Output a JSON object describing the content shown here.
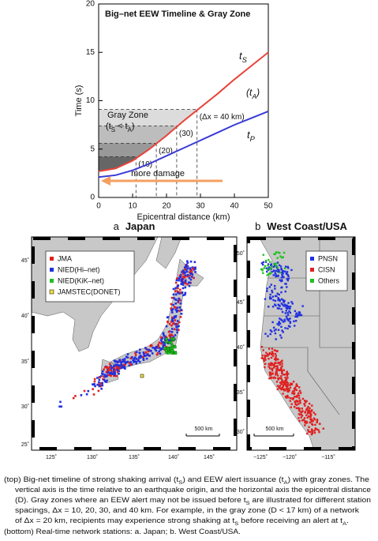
{
  "chart_data": {
    "type": "line",
    "title": "Big–net EEW Timeline & Gray Zone",
    "xlabel": "Epicentral distance (km)",
    "ylabel": "Time (s)",
    "xlim": [
      0,
      50
    ],
    "ylim": [
      0,
      20
    ],
    "xticks": [
      0,
      10,
      20,
      30,
      40,
      50
    ],
    "yticks": [
      0,
      5,
      10,
      15,
      20
    ],
    "x": [
      0,
      5,
      10,
      15,
      20,
      25,
      30,
      35,
      40,
      45,
      50
    ],
    "series": [
      {
        "label": [
          "t",
          {
            "sub": "S"
          }
        ],
        "color": "#e8433a",
        "values": [
          2.7,
          3.0,
          3.8,
          5.0,
          6.4,
          7.9,
          9.3,
          10.7,
          12.2,
          13.6,
          15.0
        ]
      },
      {
        "label": [
          "t",
          {
            "sub": "P"
          }
        ],
        "color": "#3a3ad8",
        "values": [
          2.1,
          2.3,
          2.8,
          3.5,
          4.3,
          5.1,
          5.9,
          6.7,
          7.5,
          8.2,
          8.9
        ]
      }
    ],
    "annotations": {
      "t_a": [
        "(t",
        {
          "sub": "A"
        },
        ")"
      ],
      "gray_zone": "Gray Zone",
      "condition": [
        "(t",
        {
          "sub": "S"
        },
        " < t",
        {
          "sub": "A"
        },
        ")"
      ],
      "arrow": "more damage"
    },
    "zones": [
      {
        "label": "(Δx = 40 km)",
        "x": 29,
        "top": 9.1
      },
      {
        "label": "(30)",
        "x": 23,
        "top": 7.4
      },
      {
        "label": "(20)",
        "x": 17,
        "top": 5.6
      },
      {
        "label": "(10)",
        "x": 11,
        "top": 4.2
      }
    ]
  },
  "maps": [
    {
      "letter": "a",
      "title": "Japan",
      "legend": [
        {
          "name": "JMA",
          "color": "#e02020"
        },
        {
          "name": "NIED(Hi–net)",
          "color": "#2030e0"
        },
        {
          "name": "NIED(KiK–net)",
          "color": "#20c020"
        },
        {
          "name": "JAMSTEC(DONET)",
          "color": "#f0e040"
        }
      ],
      "xlabels": [
        "125˚",
        "130˚",
        "135˚",
        "140˚",
        "145˚"
      ],
      "ylabels": [
        "45˚",
        "40˚",
        "35˚",
        "30˚",
        "25˚"
      ],
      "scale": "500 km"
    },
    {
      "letter": "b",
      "title": "West Coast/USA",
      "legend": [
        {
          "name": "PNSN",
          "color": "#2030e0"
        },
        {
          "name": "CISN",
          "color": "#e02020"
        },
        {
          "name": "Others",
          "color": "#20c020"
        }
      ],
      "xlabels": [
        "−125˚",
        "−120˚",
        "−115˚"
      ],
      "ylabels": [
        "50˚",
        "45˚",
        "40˚",
        "35˚",
        "30˚"
      ],
      "scale": "500 km"
    }
  ],
  "caption": [
    [
      "(top) Big-net timeline of strong shaking arrival (t",
      {
        "sub": "S"
      },
      ") and EEW alert issuance (t",
      {
        "sub": "A"
      },
      ") with  gray zones. The"
    ],
    [
      "vertical axis is the time relative to an earthquake origin, and the horizontal axis the epicentral distance"
    ],
    [
      "(D).  Gray zones where an EEW alert may not be issued before t",
      {
        "sub": "S"
      },
      " are illustrated for different station"
    ],
    [
      "spacings,  Δx = 10, 20, 30, and 40 km. For example, in the gray zone (D < 17 km) of a network"
    ],
    [
      "of Δx = 20 km, recipients may experience strong shaking at t",
      {
        "sub": "S"
      },
      " before receiving an alert at  t",
      {
        "sub": "A"
      },
      "."
    ],
    [
      "(bottom) Real-time network stations: a. Japan; b. West Coast/USA."
    ]
  ]
}
